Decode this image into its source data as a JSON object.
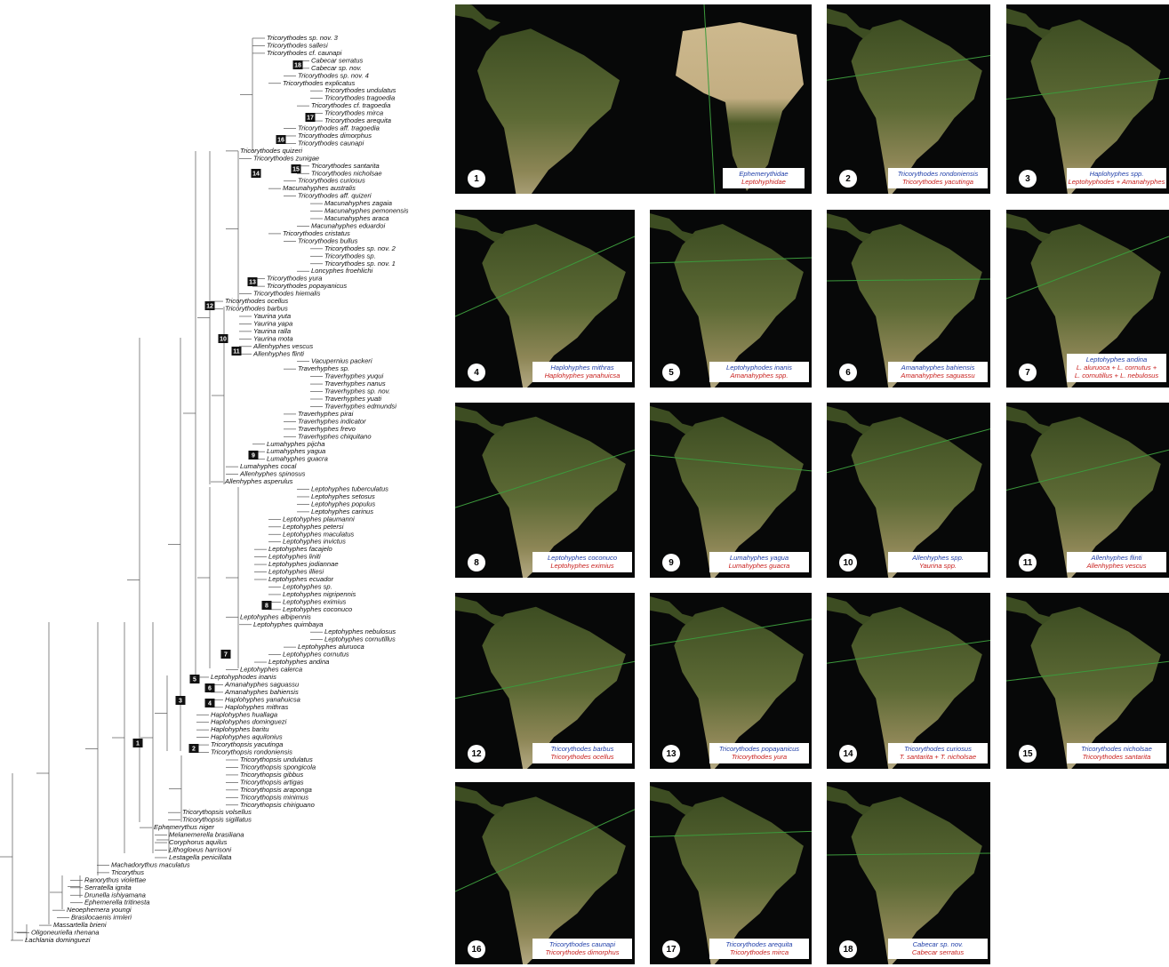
{
  "tree": {
    "leaves": [
      "Tricorythodes sp. nov. 3",
      "Tricorythodes sallesi",
      "Tricorythodes cf. caunapi",
      "Cabecar serratus",
      "Cabecar sp. nov.",
      "Tricorythodes sp. nov. 4",
      "Tricorythodes explicatus",
      "Tricorythodes undulatus",
      "Tricorythodes tragoedia",
      "Tricorythodes cf. tragoedia",
      "Tricorythodes mirca",
      "Tricorythodes arequita",
      "Tricorythodes aff. tragoedia",
      "Tricorythodes dimorphus",
      "Tricorythodes caunapi",
      "Tricorythodes quizeri",
      "Tricorythodes zunigae",
      "Tricorythodes santarita",
      "Tricorythodes nicholsae",
      "Tricorythodes curiosus",
      "Macunahyphes australis",
      "Tricorythodes aff. quizeri",
      "Macunahyphes zagaia",
      "Macunahyphes pemonensis",
      "Macunahyphes araca",
      "Macunahyphes eduardoi",
      "Tricorythodes cristatus",
      "Tricorythodes bullus",
      "Tricorythodes sp. nov. 2",
      "Tricorythodes sp.",
      "Tricorythodes sp. nov. 1",
      "Loncyphes froehlichi",
      "Tricorythodes yura",
      "Tricorythodes popayanicus",
      "Tricorythodes hiemalis",
      "Tricorythodes ocellus",
      "Tricorythodes barbus",
      "Yaurina yuta",
      "Yaurina yapa",
      "Yaurina ralla",
      "Yaurina mota",
      "Allenhyphes vescus",
      "Allenhyphes flinti",
      "Vacupernius packeri",
      "Traverhyphes sp.",
      "Traverhyphes yuqui",
      "Traverhyphes nanus",
      "Traverhyphes sp. nov.",
      "Traverhyphes yuati",
      "Traverhyphes edmundsi",
      "Traverhyphes pirai",
      "Traverhyphes indicator",
      "Traverhyphes frevo",
      "Traverhyphes chiquitano",
      "Lumahyphes pijcha",
      "Lumahyphes yagua",
      "Lumahyphes guacra",
      "Lumahyphes cocal",
      "Allenhyphes spinosus",
      "Allenhyphes asperulus",
      "Leptohyphes tuberculatus",
      "Leptohyphes setosus",
      "Leptohyphes populus",
      "Leptohyphes carinus",
      "Leptohyphes plaumanni",
      "Leptohyphes petersi",
      "Leptohyphes maculatus",
      "Leptohyphes invictus",
      "Leptohyphes facajelo",
      "Leptohyphes liniti",
      "Leptohyphes jodiannae",
      "Leptohyphes illiesi",
      "Leptohyphes ecuador",
      "Leptohyphes sp.",
      "Leptohyphes nigripennis",
      "Leptohyphes eximius",
      "Leptohyphes coconuco",
      "Leptohyphes albipennis",
      "Leptohyphes quimbaya",
      "Leptohyphes nebulosus",
      "Leptohyphes cornutillus",
      "Leptohyphes aluruoca",
      "Leptohyphes cornutus",
      "Leptohyphes andina",
      "Leptohyphes calerca",
      "Leptohyphodes inanis",
      "Amanahyphes saguassu",
      "Amanahyphes bahiensis",
      "Haplohyphes yanahuicsa",
      "Haplohyphes mithras",
      "Haplohyphes huallaga",
      "Haplohyphes dominguezi",
      "Haplohyphes baritu",
      "Haplohyphes aquilonius",
      "Tricorythopsis yacutinga",
      "Tricorythopsis rondoniensis",
      "Tricorythopsis undulatus",
      "Tricorythopsis spongicola",
      "Tricorythopsis gibbus",
      "Tricorythopsis artigas",
      "Tricorythopsis araponga",
      "Tricorythopsis minimus",
      "Tricorythopsis chiriguano",
      "Tricorythopsis volsellus",
      "Tricorythopsis sigillatus",
      "Ephemerythus niger",
      "Melanemerella brasiliana",
      "Coryphorus aquilus",
      "Lithogloeus harrisoni",
      "Lestagella penicillata",
      "Machadorythus maculatus",
      "Tricorythus",
      "Ranorythus violettae",
      "Serratella ignita",
      "Drunella ishiyamana",
      "Ephemerella tritinesta",
      "Neoephemera youngi",
      "Brasilocaenis irmleri",
      "Massartella brieni",
      "Oligoneuriella rhenana",
      "Lachlania dominguezi"
    ],
    "node_labels": [
      1,
      2,
      3,
      4,
      5,
      6,
      7,
      8,
      9,
      10,
      11,
      12,
      13,
      14,
      15,
      16,
      17,
      18
    ]
  },
  "maps": [
    {
      "number": 1,
      "blue": [
        "Ephemerythidae"
      ],
      "red": [
        "Leptohyphidae"
      ]
    },
    {
      "number": 2,
      "blue": [
        "Tricorythodes rondoniensis"
      ],
      "red": [
        "Tricorythodes yacutinga"
      ]
    },
    {
      "number": 3,
      "blue": [
        "Haplohyphes spp."
      ],
      "red": [
        "Leptohyphodes + Amanahyphes"
      ]
    },
    {
      "number": 4,
      "blue": [
        "Haplohyphes mithras"
      ],
      "red": [
        "Haplohyphes yanahuicsa"
      ]
    },
    {
      "number": 5,
      "blue": [
        "Leptohyphodes inanis"
      ],
      "red": [
        "Amanahyphes spp."
      ]
    },
    {
      "number": 6,
      "blue": [
        "Amanahyphes bahiensis"
      ],
      "red": [
        "Amanahyphes saguassu"
      ]
    },
    {
      "number": 7,
      "blue": [
        "Leptohyphes andina"
      ],
      "red": [
        "L. aluruoca + L. cornutus +",
        "L. cornutillus + L. nebulosus"
      ]
    },
    {
      "number": 8,
      "blue": [
        "Leptohyphes coconuco"
      ],
      "red": [
        "Leptohyphes eximius"
      ]
    },
    {
      "number": 9,
      "blue": [
        "Lumahyphes yagua"
      ],
      "red": [
        "Lumahyphes guacra"
      ]
    },
    {
      "number": 10,
      "blue": [
        "Allenhyphes spp."
      ],
      "red": [
        "Yaurina spp."
      ]
    },
    {
      "number": 11,
      "blue": [
        "Allenhyphes flinti"
      ],
      "red": [
        "Allenhyphes vescus"
      ]
    },
    {
      "number": 12,
      "blue": [
        "Tricorythodes barbus"
      ],
      "red": [
        "Tricorythodes ocellus"
      ]
    },
    {
      "number": 13,
      "blue": [
        "Tricorythodes popayanicus"
      ],
      "red": [
        "Tricorythodes yura"
      ]
    },
    {
      "number": 14,
      "blue": [
        "Tricorythodes curiosus"
      ],
      "red": [
        "T. santarita + T. nicholsae"
      ]
    },
    {
      "number": 15,
      "blue": [
        "Tricorythodes nicholsae"
      ],
      "red": [
        "Tricorythodes santarita"
      ]
    },
    {
      "number": 16,
      "blue": [
        "Tricorythodes caunapi"
      ],
      "red": [
        "Tricorythodes dimorphus"
      ]
    },
    {
      "number": 17,
      "blue": [
        "Tricorythodes arequita"
      ],
      "red": [
        "Tricorythodes mirca"
      ]
    },
    {
      "number": 18,
      "blue": [
        "Cabecar sp. nov."
      ],
      "red": [
        "Cabecar serratus"
      ]
    }
  ]
}
